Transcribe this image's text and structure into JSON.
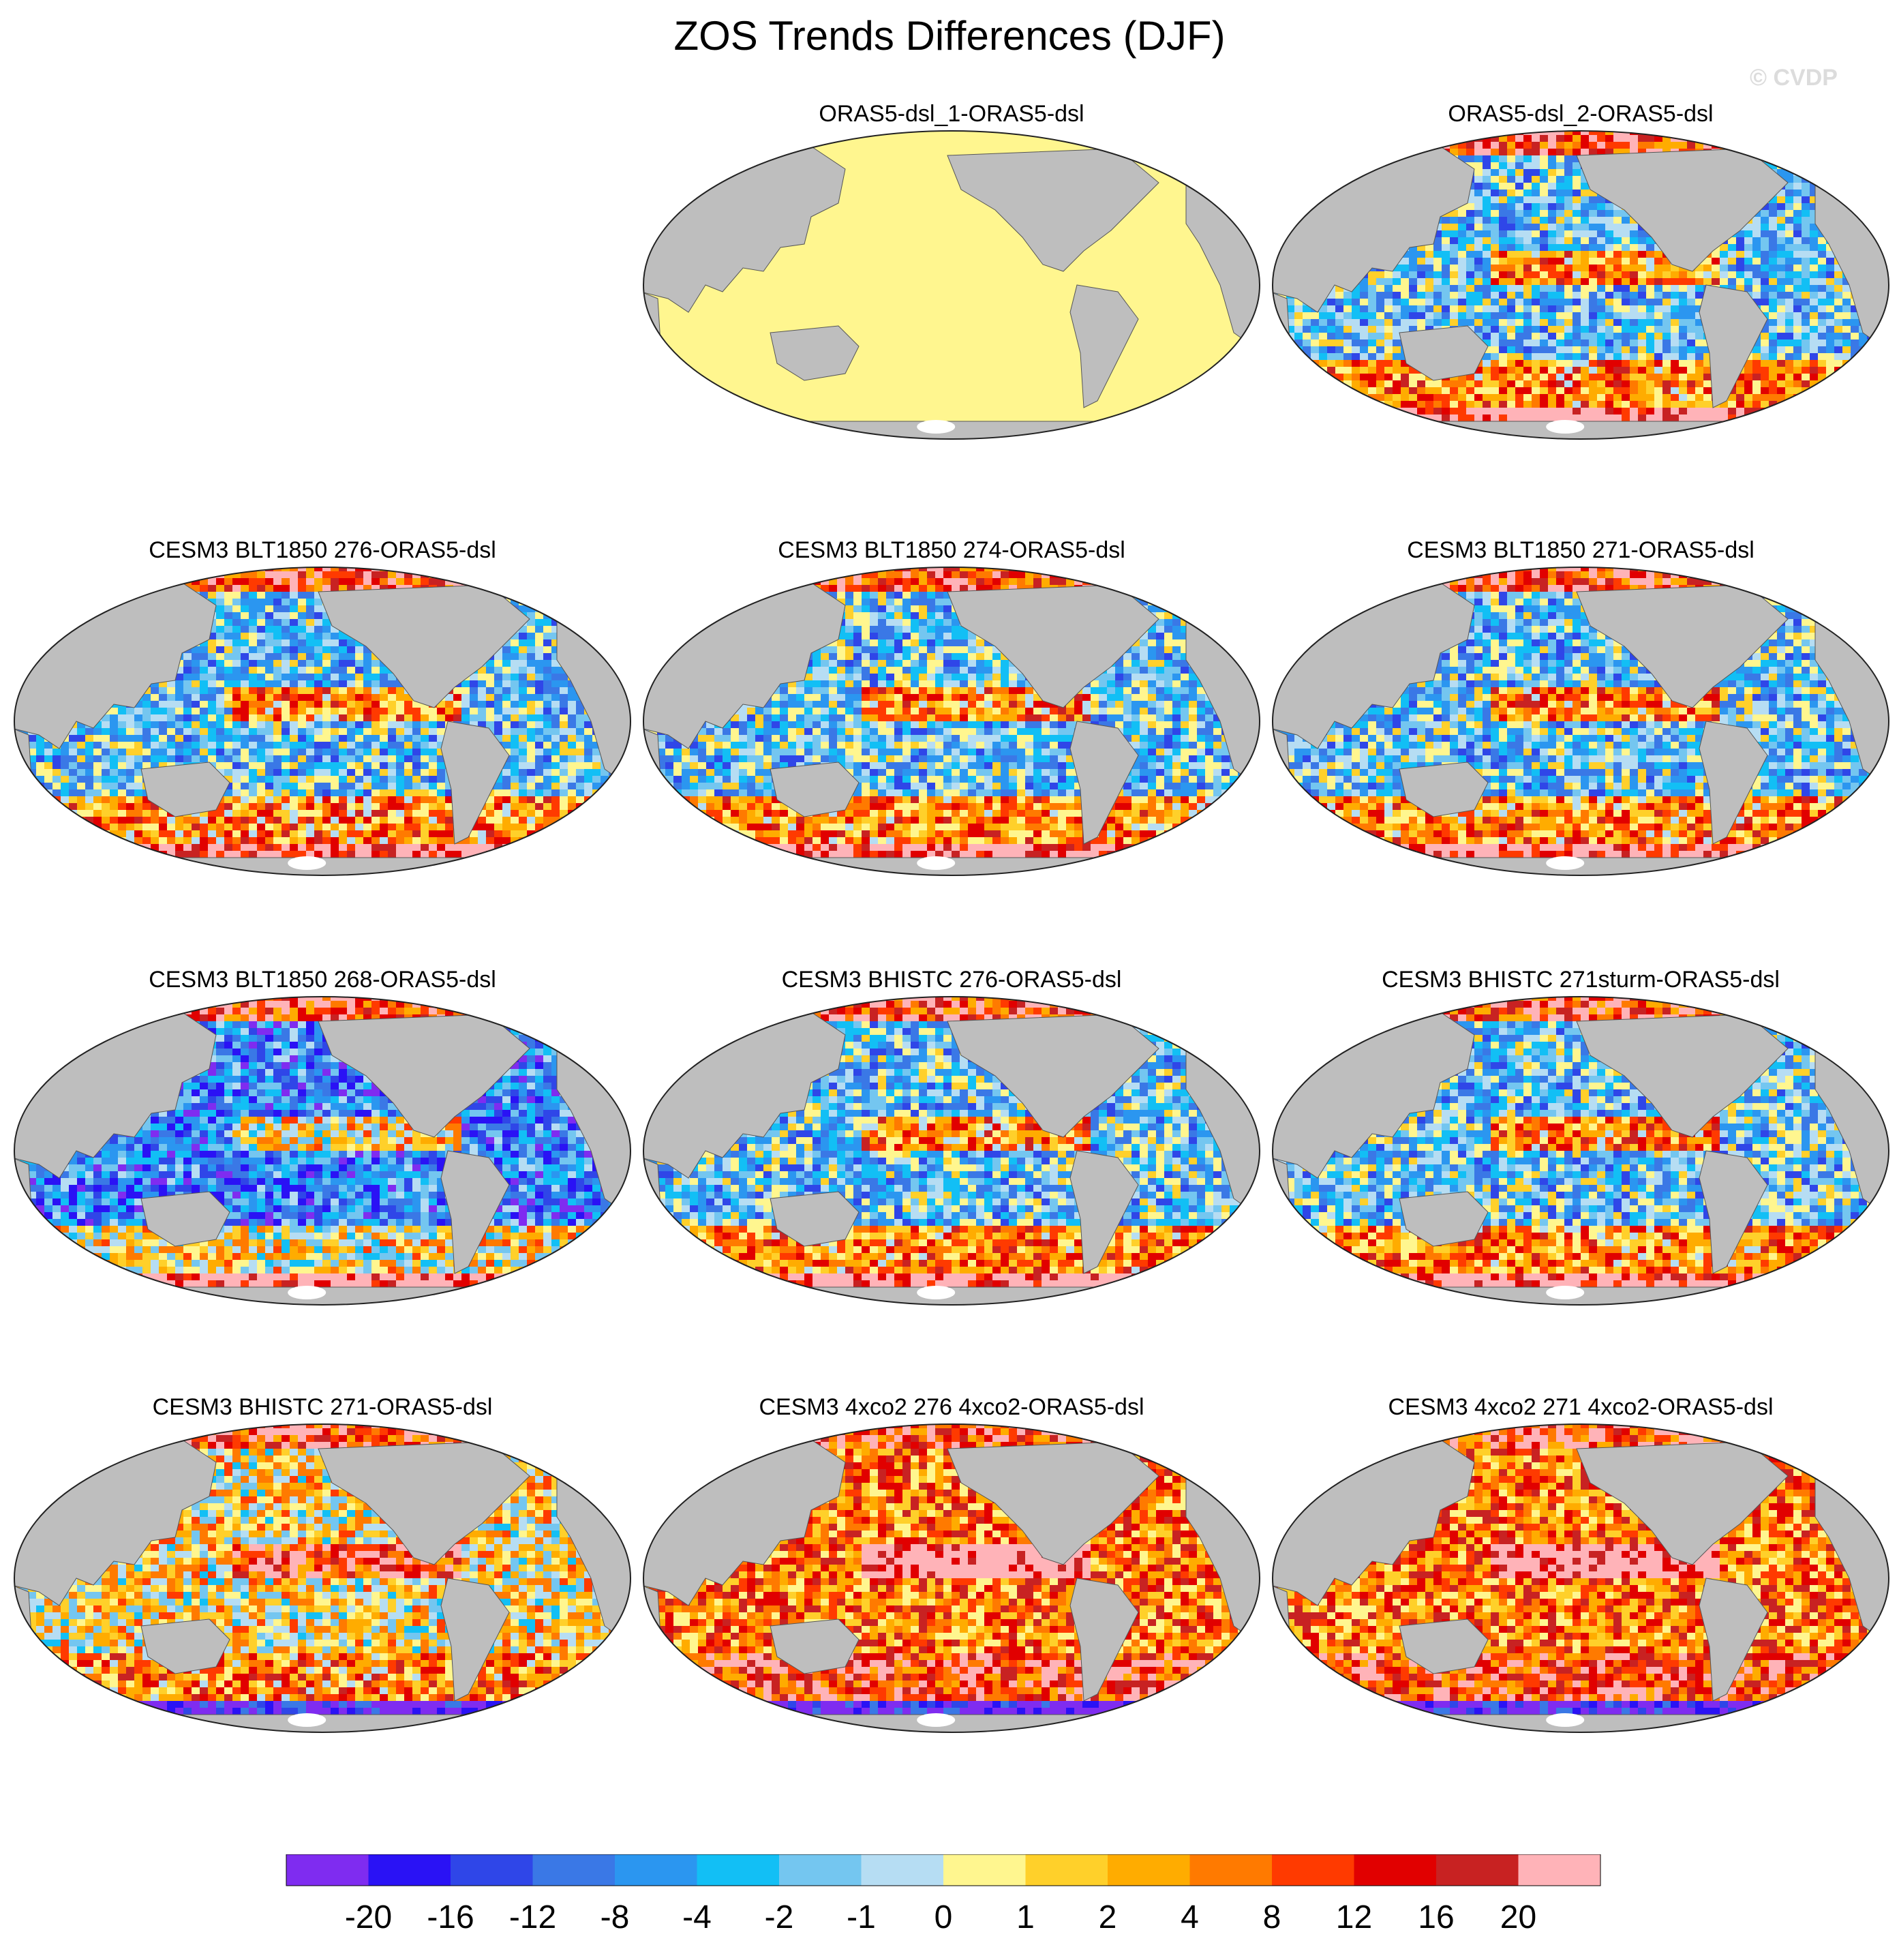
{
  "title": "ZOS Trends Differences (DJF)",
  "watermark": "© CVDP",
  "colorbar": {
    "colors": [
      "#7f2cf0",
      "#2a12f5",
      "#2f46e8",
      "#3a78e6",
      "#2b96f0",
      "#12bff5",
      "#74c6f0",
      "#b6ddf3",
      "#fff68f",
      "#ffd02a",
      "#ffac00",
      "#ff7a00",
      "#ff3a00",
      "#e10000",
      "#c82222",
      "#ffb3b8"
    ],
    "labels": [
      "-20",
      "-16",
      "-12",
      "-8",
      "-4",
      "-2",
      "-1",
      "0",
      "1",
      "2",
      "4",
      "8",
      "12",
      "16",
      "20"
    ]
  },
  "panels": [
    {
      "title": "ORAS5-dsl_1-ORAS5-dsl",
      "pattern": "uniform",
      "fill": "#fff68f"
    },
    {
      "title": "ORAS5-dsl_2-ORAS5-dsl",
      "pattern": "mixed"
    },
    {
      "title": "CESM3 BLT1850 276-ORAS5-dsl",
      "pattern": "mixed"
    },
    {
      "title": "CESM3 BLT1850 274-ORAS5-dsl",
      "pattern": "mixed"
    },
    {
      "title": "CESM3 BLT1850 271-ORAS5-dsl",
      "pattern": "mixed"
    },
    {
      "title": "CESM3 BLT1850 268-ORAS5-dsl",
      "pattern": "mostly-negative"
    },
    {
      "title": "CESM3 BHISTC 276-ORAS5-dsl",
      "pattern": "mixed"
    },
    {
      "title": "CESM3 BHISTC 271sturm-ORAS5-dsl",
      "pattern": "mixed"
    },
    {
      "title": "CESM3 BHISTC 271-ORAS5-dsl",
      "pattern": "mostly-positive"
    },
    {
      "title": "CESM3 4xco2 276 4xco2-ORAS5-dsl",
      "pattern": "strongly-positive"
    },
    {
      "title": "CESM3 4xco2 271 4xco2-ORAS5-dsl",
      "pattern": "strongly-positive"
    }
  ],
  "land_color": "#bebebe",
  "ice_color": "#ffffff"
}
